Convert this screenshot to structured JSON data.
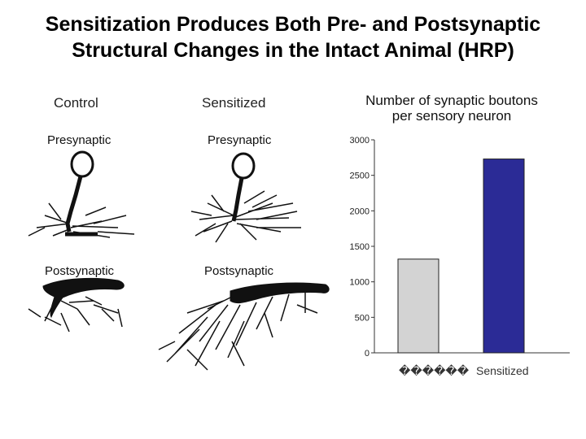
{
  "slide": {
    "title_line1": "Sensitization Produces Both Pre- and Postsynaptic",
    "title_line2": "Structural Changes in the Intact Animal (HRP)"
  },
  "figure": {
    "control_label": "Control",
    "sensitized_label": "Sensitized",
    "presynaptic_label": "Presynaptic",
    "postsynaptic_label": "Postsynaptic"
  },
  "chart_data": {
    "type": "bar",
    "title_line1": "Number of synaptic boutons",
    "title_line2": "per sensory neuron",
    "categories": [
      "������",
      "Sensitized"
    ],
    "values": [
      1320,
      2730
    ],
    "colors": [
      "#d3d3d3",
      "#2b2b96"
    ],
    "ylim": [
      0,
      3000
    ],
    "yticks": [
      "0",
      "500",
      "1000",
      "1500",
      "2000",
      "2500",
      "3000"
    ],
    "ytick_values": [
      0,
      500,
      1000,
      1500,
      2000,
      2500,
      3000
    ],
    "grid": false
  }
}
